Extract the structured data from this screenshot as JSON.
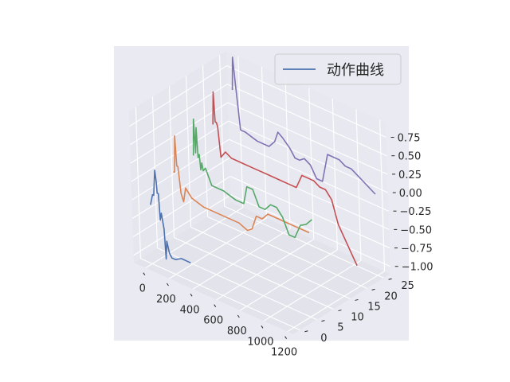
{
  "chart_data": {
    "type": "line",
    "projection": "3d",
    "legend": {
      "label": "动作曲线",
      "placement": "top-right"
    },
    "grid": true,
    "xlabel": "",
    "ylabel": "",
    "zlabel": "",
    "x_ticks": [
      "0",
      "200",
      "400",
      "600",
      "800",
      "1000",
      "1200"
    ],
    "y_ticks": [
      "0",
      "5",
      "10",
      "15",
      "20",
      "25"
    ],
    "z_ticks": [
      "−1.00",
      "−0.75",
      "−0.50",
      "−0.25",
      "0.00",
      "0.25",
      "0.50",
      "0.75"
    ],
    "xlim": [
      -100,
      1250
    ],
    "ylim": [
      -2,
      27
    ],
    "zlim": [
      -1.1,
      0.95
    ],
    "series": [
      {
        "color": "#4c72b0",
        "y": 0,
        "points": [
          [
            0,
            -0.3
          ],
          [
            20,
            -0.15
          ],
          [
            30,
            -0.15
          ],
          [
            45,
            0.2
          ],
          [
            55,
            0.05
          ],
          [
            60,
            -0.1
          ],
          [
            70,
            -0.1
          ],
          [
            80,
            -0.45
          ],
          [
            90,
            -0.35
          ],
          [
            110,
            -0.55
          ],
          [
            120,
            -0.95
          ],
          [
            130,
            -0.7
          ],
          [
            150,
            -0.85
          ],
          [
            170,
            -0.9
          ],
          [
            200,
            -0.9
          ],
          [
            250,
            -0.85
          ],
          [
            330,
            -0.85
          ]
        ]
      },
      {
        "color": "#dd8452",
        "y": 7,
        "points": [
          [
            0,
            -0.05
          ],
          [
            10,
            -0.05
          ],
          [
            20,
            0.45
          ],
          [
            30,
            0.05
          ],
          [
            40,
            0.05
          ],
          [
            60,
            -0.3
          ],
          [
            80,
            -0.4
          ],
          [
            100,
            -0.2
          ],
          [
            150,
            -0.3
          ],
          [
            250,
            -0.35
          ],
          [
            400,
            -0.35
          ],
          [
            550,
            -0.35
          ],
          [
            620,
            -0.4
          ],
          [
            660,
            -0.35
          ],
          [
            700,
            -0.15
          ],
          [
            750,
            -0.15
          ],
          [
            800,
            -0.05
          ],
          [
            850,
            -0.05
          ],
          [
            950,
            -0.05
          ],
          [
            1050,
            -0.05
          ],
          [
            1150,
            -0.05
          ]
        ]
      },
      {
        "color": "#55a868",
        "y": 13,
        "points": [
          [
            0,
            0.0
          ],
          [
            10,
            0.5
          ],
          [
            20,
            0.05
          ],
          [
            30,
            0.4
          ],
          [
            40,
            0.0
          ],
          [
            50,
            0.05
          ],
          [
            60,
            -0.15
          ],
          [
            70,
            -0.05
          ],
          [
            80,
            -0.15
          ],
          [
            100,
            -0.1
          ],
          [
            150,
            -0.3
          ],
          [
            250,
            -0.3
          ],
          [
            350,
            -0.35
          ],
          [
            420,
            -0.35
          ],
          [
            450,
            -0.1
          ],
          [
            500,
            -0.1
          ],
          [
            550,
            -0.3
          ],
          [
            600,
            -0.3
          ],
          [
            650,
            -0.2
          ],
          [
            700,
            -0.2
          ],
          [
            750,
            -0.3
          ],
          [
            800,
            -0.5
          ],
          [
            850,
            -0.5
          ],
          [
            900,
            -0.3
          ],
          [
            950,
            -0.25
          ],
          [
            1000,
            -0.15
          ]
        ]
      },
      {
        "color": "#c44e52",
        "y": 19,
        "points": [
          [
            0,
            0.25
          ],
          [
            10,
            0.7
          ],
          [
            20,
            0.3
          ],
          [
            30,
            0.3
          ],
          [
            40,
            0.25
          ],
          [
            60,
            -0.15
          ],
          [
            80,
            -0.1
          ],
          [
            100,
            -0.05
          ],
          [
            150,
            -0.1
          ],
          [
            250,
            -0.1
          ],
          [
            350,
            -0.1
          ],
          [
            450,
            -0.1
          ],
          [
            550,
            -0.1
          ],
          [
            650,
            -0.1
          ],
          [
            700,
            -0.1
          ],
          [
            750,
            0.1
          ],
          [
            800,
            0.1
          ],
          [
            850,
            0.1
          ],
          [
            900,
            0.05
          ],
          [
            950,
            0.05
          ],
          [
            1000,
            -0.05
          ],
          [
            1050,
            -0.35
          ],
          [
            1100,
            -0.5
          ],
          [
            1150,
            -0.65
          ],
          [
            1200,
            -0.8
          ]
        ]
      },
      {
        "color": "#8172b3",
        "y": 25,
        "points": [
          [
            0,
            0.55
          ],
          [
            10,
            1.0
          ],
          [
            20,
            0.8
          ],
          [
            30,
            0.6
          ],
          [
            60,
            0.05
          ],
          [
            100,
            0.05
          ],
          [
            200,
            0.0
          ],
          [
            300,
            0.0
          ],
          [
            350,
            0.1
          ],
          [
            380,
            0.25
          ],
          [
            420,
            0.2
          ],
          [
            480,
            0.1
          ],
          [
            520,
            0.0
          ],
          [
            560,
            0.0
          ],
          [
            600,
            0.05
          ],
          [
            650,
            0.0
          ],
          [
            700,
            -0.15
          ],
          [
            750,
            -0.15
          ],
          [
            800,
            0.25
          ],
          [
            850,
            0.25
          ],
          [
            900,
            0.25
          ],
          [
            950,
            0.2
          ],
          [
            1000,
            0.2
          ],
          [
            1050,
            0.15
          ],
          [
            1100,
            0.1
          ],
          [
            1150,
            0.05
          ],
          [
            1200,
            0.0
          ]
        ]
      }
    ]
  }
}
